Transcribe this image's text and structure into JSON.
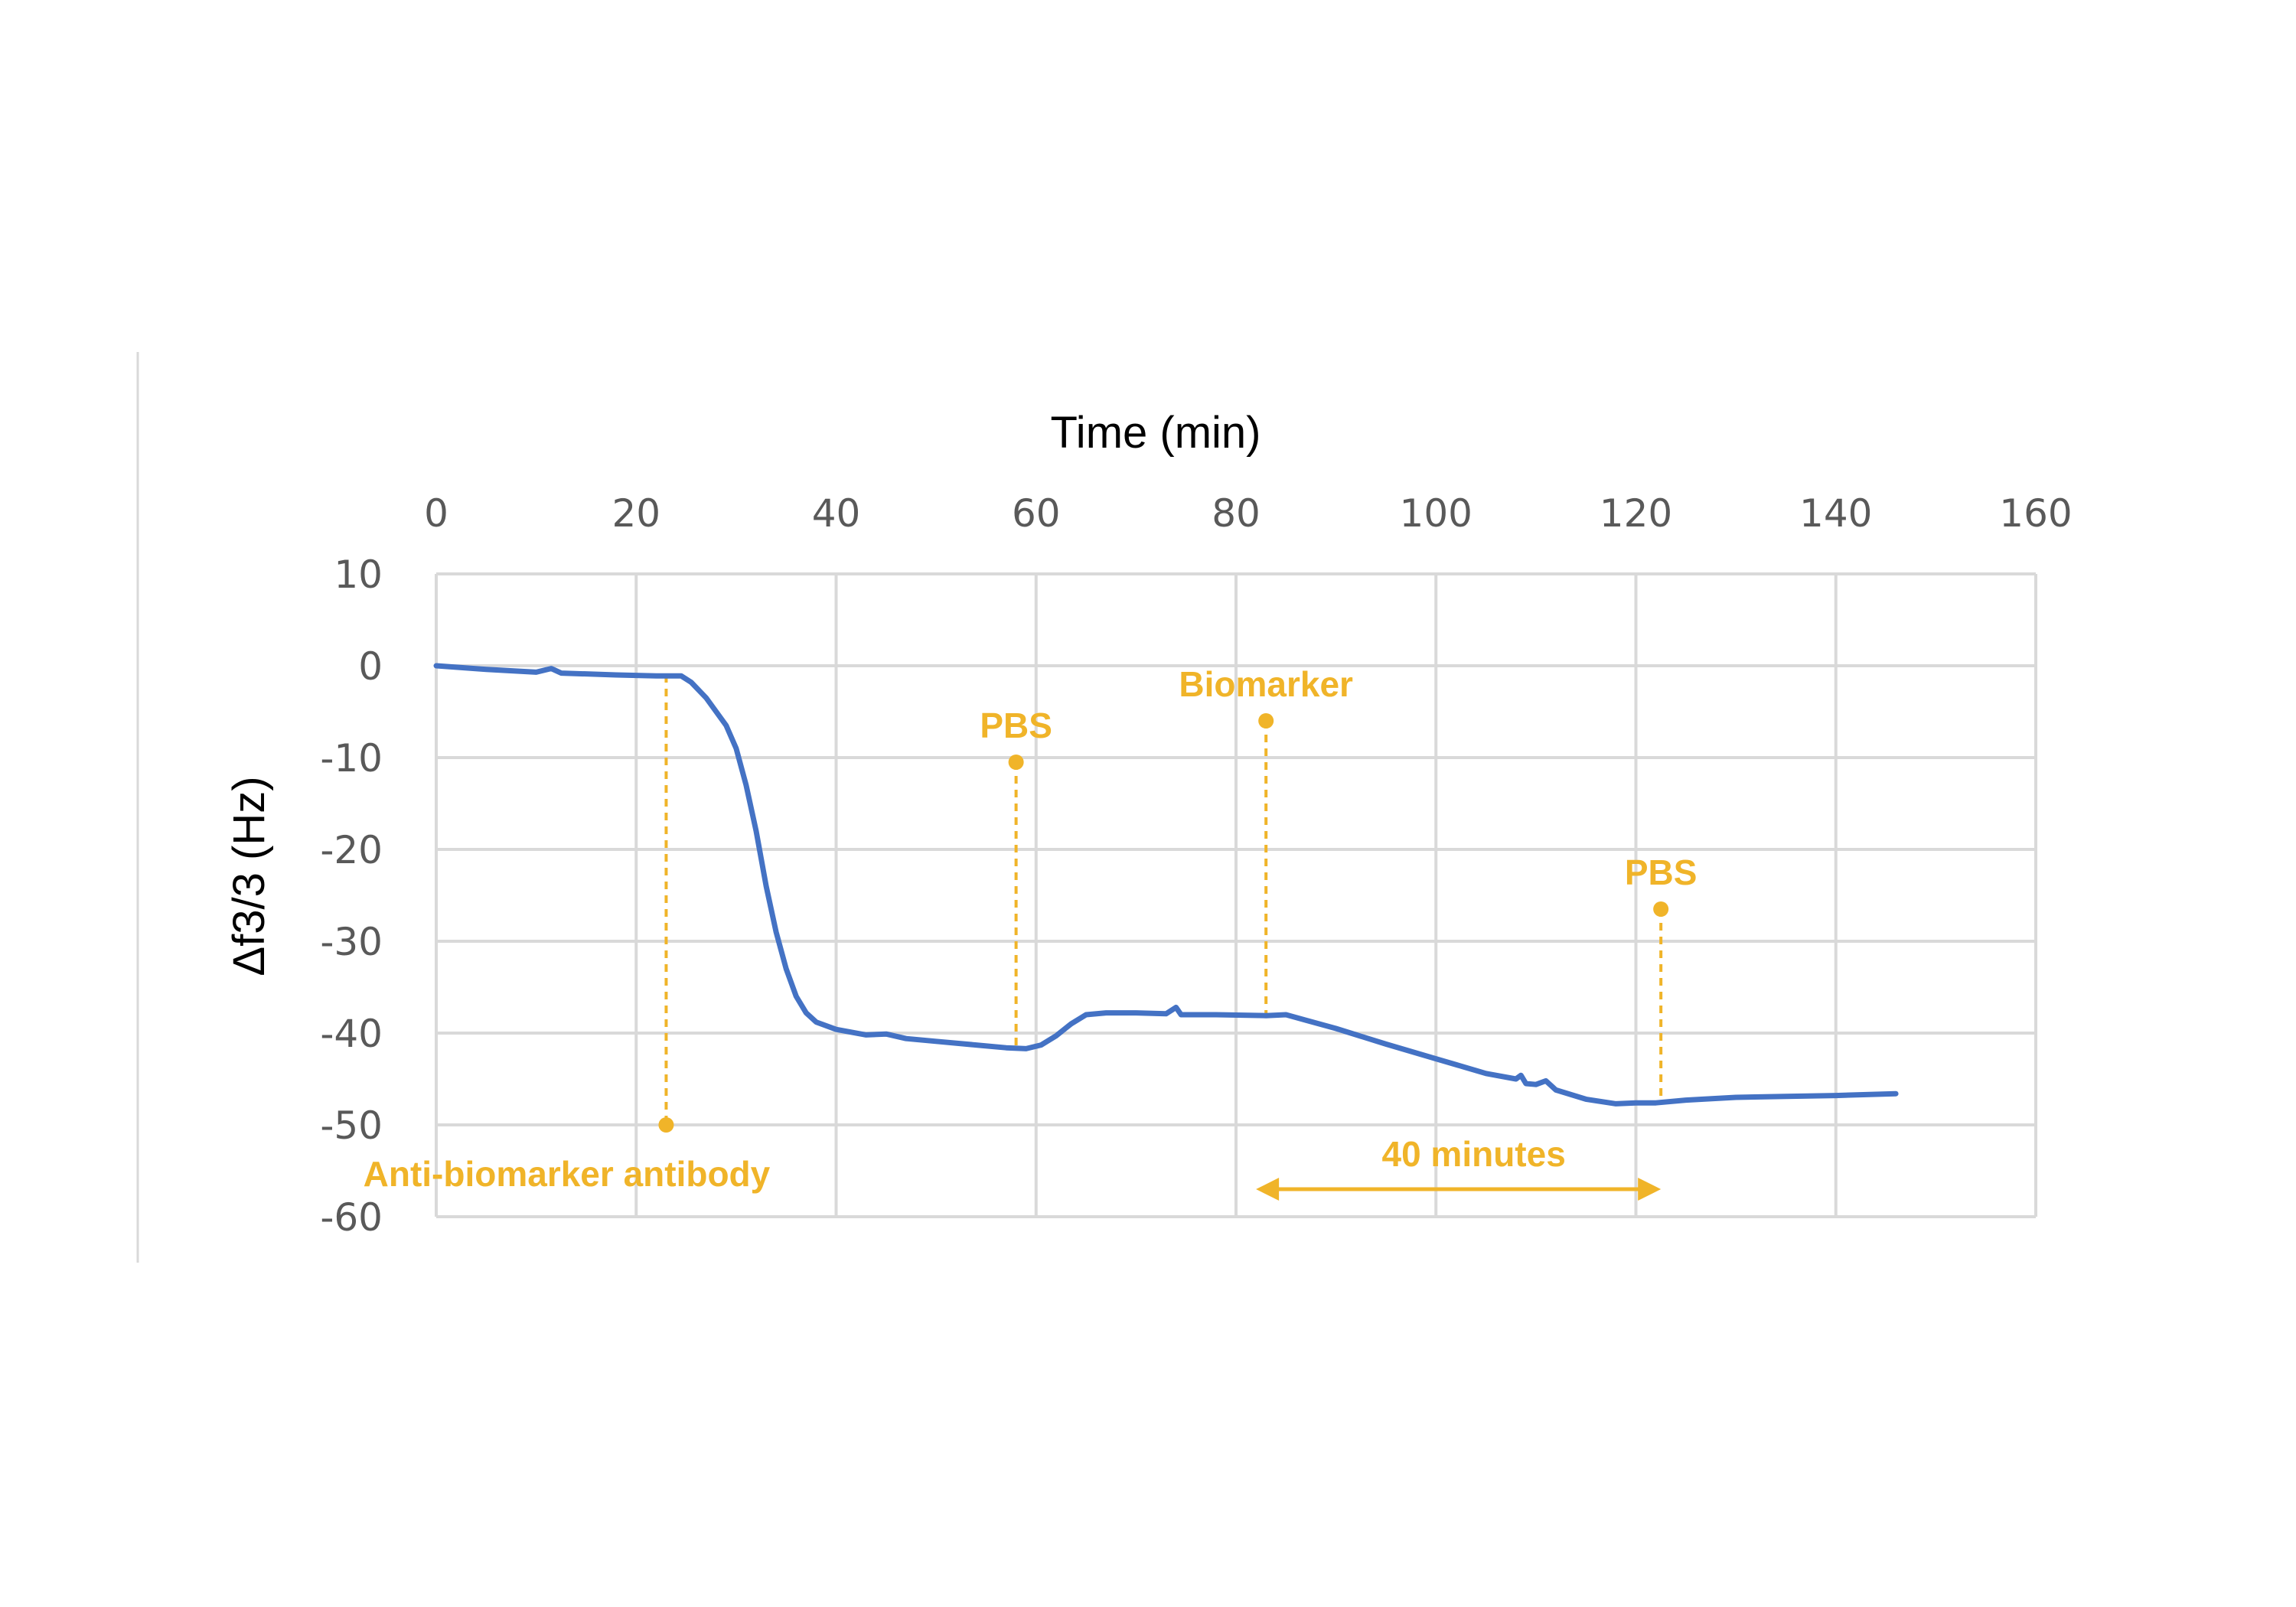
{
  "chart_data": {
    "type": "line",
    "xlabel": "Time (min)",
    "ylabel": "Δf3/3 (Hz)",
    "xlim": [
      0,
      160
    ],
    "ylim": [
      -60,
      10
    ],
    "x_ticks": [
      0,
      20,
      40,
      60,
      80,
      100,
      120,
      140,
      160
    ],
    "y_ticks": [
      10,
      0,
      -10,
      -20,
      -30,
      -40,
      -50,
      -60
    ],
    "x_axis_position": "top",
    "grid": true,
    "colors": {
      "line": "#4472C4",
      "annotation": "#F0B429",
      "grid": "#D9D9D9"
    },
    "series": [
      {
        "points": [
          [
            0,
            0
          ],
          [
            5,
            -0.4
          ],
          [
            10,
            -0.7
          ],
          [
            11.5,
            -0.3
          ],
          [
            12.5,
            -0.8
          ],
          [
            18,
            -1.0
          ],
          [
            22,
            -1.1
          ],
          [
            24.5,
            -1.1
          ],
          [
            25.5,
            -1.8
          ],
          [
            27,
            -3.5
          ],
          [
            29,
            -6.5
          ],
          [
            30,
            -9.0
          ],
          [
            31,
            -13
          ],
          [
            32,
            -18
          ],
          [
            33,
            -24
          ],
          [
            34,
            -29
          ],
          [
            35,
            -33
          ],
          [
            36,
            -36
          ],
          [
            37,
            -37.8
          ],
          [
            38,
            -38.8
          ],
          [
            40,
            -39.6
          ],
          [
            43,
            -40.2
          ],
          [
            45,
            -40.1
          ],
          [
            47,
            -40.6
          ],
          [
            50,
            -40.9
          ],
          [
            54,
            -41.3
          ],
          [
            57,
            -41.6
          ],
          [
            59,
            -41.7
          ],
          [
            60.5,
            -41.3
          ],
          [
            62,
            -40.3
          ],
          [
            63.5,
            -39.0
          ],
          [
            65,
            -38.0
          ],
          [
            67,
            -37.8
          ],
          [
            70,
            -37.8
          ],
          [
            73,
            -37.9
          ],
          [
            74,
            -37.2
          ],
          [
            74.5,
            -38.0
          ],
          [
            78,
            -38.0
          ],
          [
            83,
            -38.1
          ],
          [
            85,
            -38.0
          ],
          [
            87,
            -38.6
          ],
          [
            90,
            -39.5
          ],
          [
            95,
            -41.2
          ],
          [
            100,
            -42.8
          ],
          [
            105,
            -44.4
          ],
          [
            108,
            -45.0
          ],
          [
            108.5,
            -44.6
          ],
          [
            109,
            -45.5
          ],
          [
            110,
            -45.6
          ],
          [
            111,
            -45.2
          ],
          [
            112,
            -46.2
          ],
          [
            115,
            -47.2
          ],
          [
            118,
            -47.7
          ],
          [
            120,
            -47.6
          ],
          [
            122,
            -47.6
          ],
          [
            125,
            -47.3
          ],
          [
            130,
            -47.0
          ],
          [
            135,
            -46.9
          ],
          [
            140,
            -46.8
          ],
          [
            146,
            -46.6
          ]
        ]
      }
    ],
    "annotations": [
      {
        "label": "Anti-biomarker antibody",
        "x": 23,
        "marker_y": -50,
        "line_top_y": -1
      },
      {
        "label": "PBS",
        "x": 58,
        "marker_y": -10.5,
        "line_bottom_y": -41.7
      },
      {
        "label": "Biomarker",
        "x": 83,
        "marker_y": -6,
        "line_bottom_y": -38
      },
      {
        "label": "PBS",
        "x": 122.5,
        "marker_y": -26.5,
        "line_bottom_y": -47.6
      }
    ],
    "span_annotation": {
      "label": "40 minutes",
      "x_start": 82,
      "x_end": 122.5,
      "y": -57
    }
  }
}
